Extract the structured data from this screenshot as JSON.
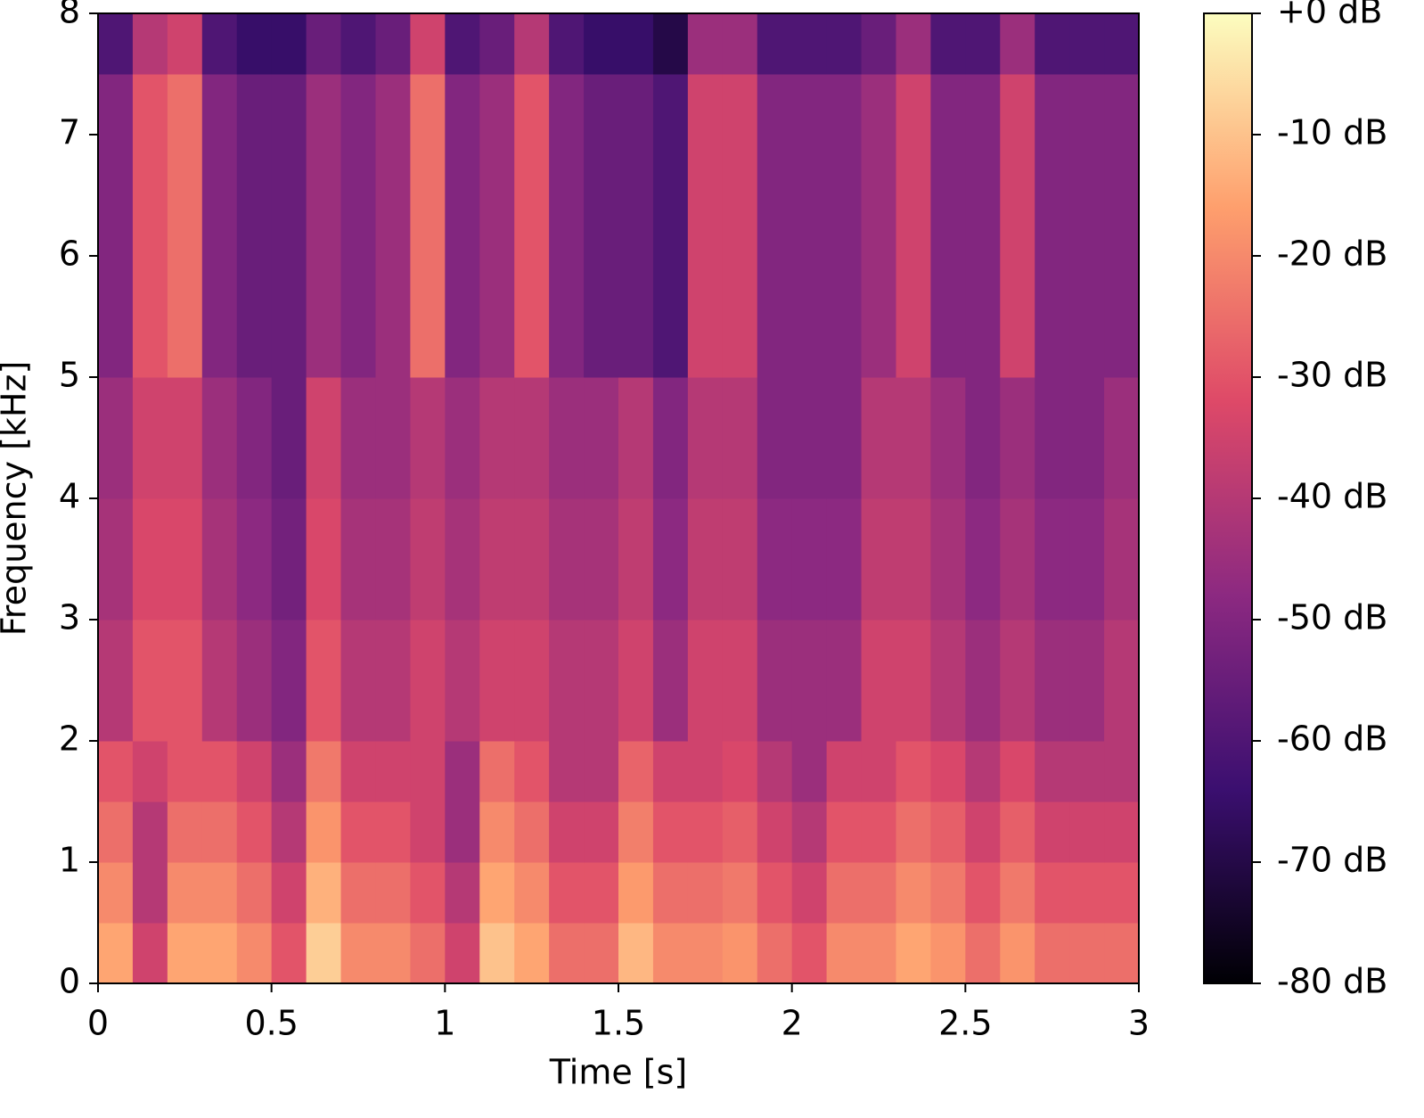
{
  "chart_data": {
    "type": "heatmap",
    "xlabel": "Time [s]",
    "ylabel": "Frequency [kHz]",
    "xlim": [
      0,
      3
    ],
    "ylim": [
      0,
      8
    ],
    "xticks": [
      0,
      0.5,
      1,
      1.5,
      2,
      2.5,
      3
    ],
    "yticks": [
      0,
      1,
      2,
      3,
      4,
      5,
      6,
      7,
      8
    ],
    "x_edges": [
      0,
      0.1,
      0.2,
      0.3,
      0.4,
      0.5,
      0.6,
      0.7,
      0.8,
      0.9,
      1,
      1.1,
      1.2,
      1.3,
      1.4,
      1.5,
      1.6,
      1.7,
      1.8,
      1.9,
      2,
      2.1,
      2.2,
      2.3,
      2.4,
      2.5,
      2.6,
      2.7,
      2.8,
      2.9,
      3
    ],
    "y_edges": [
      0,
      0.5,
      1,
      1.5,
      2,
      2.5,
      3,
      3.5,
      4,
      4.5,
      5,
      5.5,
      6,
      6.5,
      7,
      7.5,
      8
    ],
    "z": [
      [
        -15,
        -35,
        -15,
        -15,
        -20,
        -30,
        -8,
        -20,
        -20,
        -25,
        -35,
        -10,
        -15,
        -25,
        -25,
        -12,
        -20,
        -20,
        -18,
        -25,
        -30,
        -20,
        -20,
        -15,
        -18,
        -25,
        -18,
        -25,
        -25,
        -25
      ],
      [
        -20,
        -40,
        -20,
        -20,
        -25,
        -35,
        -13,
        -25,
        -25,
        -30,
        -40,
        -15,
        -20,
        -30,
        -30,
        -17,
        -25,
        -25,
        -23,
        -30,
        -35,
        -25,
        -25,
        -20,
        -23,
        -30,
        -23,
        -30,
        -30,
        -30
      ],
      [
        -25,
        -40,
        -25,
        -25,
        -30,
        -40,
        -18,
        -30,
        -30,
        -35,
        -45,
        -20,
        -25,
        -35,
        -35,
        -22,
        -30,
        -30,
        -28,
        -35,
        -40,
        -30,
        -30,
        -25,
        -28,
        -35,
        -28,
        -35,
        -35,
        -35
      ],
      [
        -30,
        -35,
        -30,
        -30,
        -35,
        -45,
        -23,
        -35,
        -35,
        -35,
        -45,
        -25,
        -30,
        -40,
        -40,
        -27,
        -35,
        -35,
        -33,
        -40,
        -45,
        -35,
        -35,
        -30,
        -33,
        -40,
        -33,
        -40,
        -40,
        -40
      ],
      [
        -40,
        -30,
        -30,
        -40,
        -45,
        -50,
        -30,
        -40,
        -40,
        -35,
        -40,
        -35,
        -35,
        -40,
        -40,
        -35,
        -45,
        -35,
        -35,
        -45,
        -45,
        -45,
        -35,
        -35,
        -40,
        -45,
        -40,
        -45,
        -45,
        -40
      ],
      [
        -40,
        -30,
        -30,
        -40,
        -45,
        -50,
        -30,
        -40,
        -40,
        -35,
        -40,
        -35,
        -35,
        -40,
        -40,
        -35,
        -45,
        -35,
        -35,
        -45,
        -45,
        -45,
        -35,
        -35,
        -40,
        -45,
        -40,
        -45,
        -45,
        -40
      ],
      [
        -43,
        -33,
        -33,
        -43,
        -48,
        -53,
        -33,
        -43,
        -43,
        -38,
        -43,
        -38,
        -38,
        -43,
        -43,
        -38,
        -48,
        -38,
        -38,
        -48,
        -48,
        -48,
        -38,
        -38,
        -43,
        -48,
        -43,
        -48,
        -48,
        -43
      ],
      [
        -43,
        -33,
        -33,
        -43,
        -48,
        -53,
        -33,
        -43,
        -43,
        -38,
        -43,
        -38,
        -38,
        -43,
        -43,
        -38,
        -48,
        -38,
        -38,
        -48,
        -48,
        -48,
        -38,
        -38,
        -43,
        -48,
        -43,
        -48,
        -48,
        -43
      ],
      [
        -45,
        -35,
        -35,
        -45,
        -50,
        -55,
        -35,
        -45,
        -45,
        -40,
        -45,
        -40,
        -40,
        -45,
        -45,
        -40,
        -50,
        -40,
        -40,
        -50,
        -50,
        -50,
        -40,
        -40,
        -45,
        -50,
        -45,
        -50,
        -50,
        -45
      ],
      [
        -45,
        -35,
        -35,
        -45,
        -50,
        -55,
        -35,
        -45,
        -45,
        -40,
        -45,
        -40,
        -40,
        -45,
        -45,
        -40,
        -50,
        -40,
        -40,
        -50,
        -50,
        -50,
        -40,
        -40,
        -45,
        -50,
        -45,
        -50,
        -50,
        -45
      ],
      [
        -50,
        -30,
        -25,
        -50,
        -55,
        -55,
        -45,
        -50,
        -45,
        -25,
        -50,
        -45,
        -30,
        -50,
        -55,
        -55,
        -60,
        -35,
        -35,
        -50,
        -50,
        -50,
        -45,
        -35,
        -50,
        -50,
        -35,
        -50,
        -50,
        -50
      ],
      [
        -50,
        -30,
        -25,
        -50,
        -55,
        -55,
        -45,
        -50,
        -45,
        -25,
        -50,
        -45,
        -30,
        -50,
        -55,
        -55,
        -60,
        -35,
        -35,
        -50,
        -50,
        -50,
        -45,
        -35,
        -50,
        -50,
        -35,
        -50,
        -50,
        -50
      ],
      [
        -50,
        -30,
        -25,
        -50,
        -55,
        -55,
        -45,
        -50,
        -45,
        -25,
        -50,
        -45,
        -30,
        -50,
        -55,
        -55,
        -60,
        -35,
        -35,
        -50,
        -50,
        -50,
        -45,
        -35,
        -50,
        -50,
        -35,
        -50,
        -50,
        -50
      ],
      [
        -50,
        -30,
        -25,
        -50,
        -55,
        -55,
        -45,
        -50,
        -45,
        -25,
        -50,
        -45,
        -30,
        -50,
        -55,
        -55,
        -60,
        -35,
        -35,
        -50,
        -50,
        -50,
        -45,
        -35,
        -50,
        -50,
        -35,
        -50,
        -50,
        -50
      ],
      [
        -50,
        -30,
        -25,
        -50,
        -55,
        -55,
        -45,
        -50,
        -45,
        -25,
        -50,
        -45,
        -30,
        -50,
        -55,
        -55,
        -60,
        -35,
        -35,
        -50,
        -50,
        -50,
        -45,
        -35,
        -50,
        -50,
        -35,
        -50,
        -50,
        -50
      ],
      [
        -60,
        -40,
        -35,
        -60,
        -65,
        -65,
        -55,
        -60,
        -55,
        -35,
        -60,
        -55,
        -40,
        -60,
        -65,
        -65,
        -70,
        -45,
        -45,
        -60,
        -60,
        -60,
        -55,
        -45,
        -60,
        -60,
        -45,
        -60,
        -60,
        -60
      ]
    ],
    "colormap": [
      "#000004",
      "#3b0f70",
      "#8c2981",
      "#de4968",
      "#fe9f6d",
      "#fcfdbf"
    ],
    "colorbar": {
      "lim": [
        -80,
        0
      ],
      "ticks": [
        {
          "value": 0,
          "label": "+0 dB"
        },
        {
          "value": -10,
          "label": "-10 dB"
        },
        {
          "value": -20,
          "label": "-20 dB"
        },
        {
          "value": -30,
          "label": "-30 dB"
        },
        {
          "value": -40,
          "label": "-40 dB"
        },
        {
          "value": -50,
          "label": "-50 dB"
        },
        {
          "value": -60,
          "label": "-60 dB"
        },
        {
          "value": -70,
          "label": "-70 dB"
        },
        {
          "value": -80,
          "label": "-80 dB"
        }
      ]
    }
  }
}
